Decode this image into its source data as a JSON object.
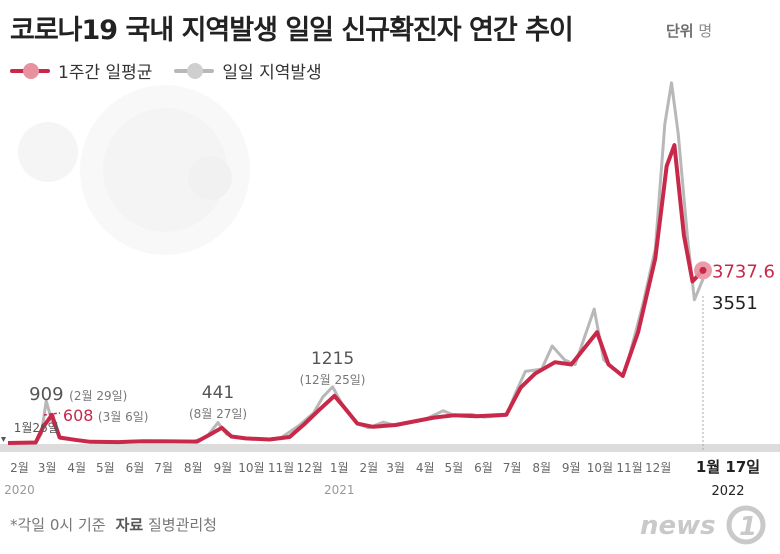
{
  "title": "코로나19 국내 지역발생 일일 신규확진자 연간 추이",
  "unit": {
    "label": "단위",
    "value": "명"
  },
  "legend": {
    "avg": "1주간 일평균",
    "daily": "일일 지역발생"
  },
  "colors": {
    "avg": "#c8294a",
    "avg_dot": "#e8929f",
    "daily": "#b8b8b8",
    "daily_dot": "#cfcfcf",
    "base": "#dcdcdc",
    "label_gray": "#555555"
  },
  "footer": {
    "note": "*각일 0시 기준",
    "source_label": "자료",
    "source": "질병관리청"
  },
  "brand": {
    "text": "news1"
  },
  "chart_data": {
    "type": "line",
    "title": "코로나19 국내 지역발생 일일 신규확진자 연간 추이",
    "xlabel": "",
    "ylabel": "",
    "x_range": [
      "2020-01-20",
      "2022-01-17"
    ],
    "ylim": [
      0,
      7600
    ],
    "grid": false,
    "legend_position": "top-left",
    "month_ticks": [
      {
        "date": "2020-02-01",
        "label": "2월"
      },
      {
        "date": "2020-03-01",
        "label": "3월"
      },
      {
        "date": "2020-04-01",
        "label": "4월"
      },
      {
        "date": "2020-05-01",
        "label": "5월"
      },
      {
        "date": "2020-06-01",
        "label": "6월"
      },
      {
        "date": "2020-07-01",
        "label": "7월"
      },
      {
        "date": "2020-08-01",
        "label": "8월"
      },
      {
        "date": "2020-09-01",
        "label": "9월"
      },
      {
        "date": "2020-10-01",
        "label": "10월"
      },
      {
        "date": "2020-11-01",
        "label": "11월"
      },
      {
        "date": "2020-12-01",
        "label": "12월"
      },
      {
        "date": "2021-01-01",
        "label": "1월"
      },
      {
        "date": "2021-02-01",
        "label": "2월"
      },
      {
        "date": "2021-03-01",
        "label": "3월"
      },
      {
        "date": "2021-04-01",
        "label": "4월"
      },
      {
        "date": "2021-05-01",
        "label": "5월"
      },
      {
        "date": "2021-06-01",
        "label": "6월"
      },
      {
        "date": "2021-07-01",
        "label": "7월"
      },
      {
        "date": "2021-08-01",
        "label": "8월"
      },
      {
        "date": "2021-09-01",
        "label": "9월"
      },
      {
        "date": "2021-10-01",
        "label": "10월"
      },
      {
        "date": "2021-11-01",
        "label": "11월"
      },
      {
        "date": "2021-12-01",
        "label": "12월"
      }
    ],
    "year_labels": [
      {
        "date": "2020-02-01",
        "label": "2020"
      },
      {
        "date": "2021-01-01",
        "label": "2021"
      },
      {
        "date": "2022-01-17",
        "label": "2022"
      }
    ],
    "end_tick": {
      "date": "2022-01-17",
      "label": "1월 17일"
    },
    "series": [
      {
        "name": "일일 지역발생",
        "points": [
          [
            "2020-01-20",
            0
          ],
          [
            "2020-02-18",
            15
          ],
          [
            "2020-02-24",
            200
          ],
          [
            "2020-02-29",
            909
          ],
          [
            "2020-03-06",
            480
          ],
          [
            "2020-03-15",
            100
          ],
          [
            "2020-03-25",
            80
          ],
          [
            "2020-04-10",
            30
          ],
          [
            "2020-05-10",
            20
          ],
          [
            "2020-06-05",
            40
          ],
          [
            "2020-07-01",
            45
          ],
          [
            "2020-08-01",
            30
          ],
          [
            "2020-08-15",
            130
          ],
          [
            "2020-08-27",
            441
          ],
          [
            "2020-09-05",
            190
          ],
          [
            "2020-09-15",
            120
          ],
          [
            "2020-10-01",
            90
          ],
          [
            "2020-10-20",
            80
          ],
          [
            "2020-11-01",
            110
          ],
          [
            "2020-11-20",
            380
          ],
          [
            "2020-12-05",
            650
          ],
          [
            "2020-12-15",
            1000
          ],
          [
            "2020-12-25",
            1215
          ],
          [
            "2021-01-05",
            800
          ],
          [
            "2021-01-20",
            420
          ],
          [
            "2021-02-01",
            330
          ],
          [
            "2021-02-16",
            450
          ],
          [
            "2021-03-01",
            380
          ],
          [
            "2021-04-01",
            510
          ],
          [
            "2021-04-20",
            700
          ],
          [
            "2021-05-01",
            600
          ],
          [
            "2021-05-20",
            620
          ],
          [
            "2021-06-01",
            560
          ],
          [
            "2021-06-25",
            600
          ],
          [
            "2021-07-05",
            1100
          ],
          [
            "2021-07-15",
            1550
          ],
          [
            "2021-08-01",
            1600
          ],
          [
            "2021-08-12",
            2100
          ],
          [
            "2021-08-25",
            1800
          ],
          [
            "2021-09-05",
            1700
          ],
          [
            "2021-09-25",
            2900
          ],
          [
            "2021-10-05",
            1800
          ],
          [
            "2021-10-25",
            1450
          ],
          [
            "2021-11-01",
            1900
          ],
          [
            "2021-11-15",
            3000
          ],
          [
            "2021-11-28",
            4200
          ],
          [
            "2021-12-08",
            6900
          ],
          [
            "2021-12-15",
            7800
          ],
          [
            "2021-12-22",
            6700
          ],
          [
            "2022-01-01",
            4400
          ],
          [
            "2022-01-08",
            3100
          ],
          [
            "2022-01-17",
            3551
          ]
        ],
        "labels": [
          {
            "date": "2020-02-29",
            "value": 909,
            "note": "(2월 29일)"
          },
          {
            "date": "2020-08-27",
            "value": 441,
            "note": "(8월 27일)"
          },
          {
            "date": "2020-12-25",
            "value": 1215,
            "note": "(12월 25일)"
          },
          {
            "date": "2022-01-17",
            "value": 3551,
            "note": ""
          }
        ]
      },
      {
        "name": "1주간 일평균",
        "points": [
          [
            "2020-01-20",
            0
          ],
          [
            "2020-02-18",
            10
          ],
          [
            "2020-02-26",
            350
          ],
          [
            "2020-03-06",
            608
          ],
          [
            "2020-03-14",
            120
          ],
          [
            "2020-03-30",
            70
          ],
          [
            "2020-04-15",
            25
          ],
          [
            "2020-05-15",
            20
          ],
          [
            "2020-06-10",
            40
          ],
          [
            "2020-07-10",
            35
          ],
          [
            "2020-08-05",
            30
          ],
          [
            "2020-08-20",
            200
          ],
          [
            "2020-08-31",
            330
          ],
          [
            "2020-09-10",
            140
          ],
          [
            "2020-09-25",
            100
          ],
          [
            "2020-10-20",
            75
          ],
          [
            "2020-11-10",
            130
          ],
          [
            "2020-11-25",
            400
          ],
          [
            "2020-12-10",
            700
          ],
          [
            "2020-12-27",
            1020
          ],
          [
            "2021-01-05",
            800
          ],
          [
            "2021-01-20",
            420
          ],
          [
            "2021-02-05",
            350
          ],
          [
            "2021-03-01",
            390
          ],
          [
            "2021-04-10",
            550
          ],
          [
            "2021-05-01",
            600
          ],
          [
            "2021-05-25",
            580
          ],
          [
            "2021-06-25",
            610
          ],
          [
            "2021-07-10",
            1200
          ],
          [
            "2021-07-25",
            1500
          ],
          [
            "2021-08-15",
            1750
          ],
          [
            "2021-09-01",
            1700
          ],
          [
            "2021-09-28",
            2400
          ],
          [
            "2021-10-10",
            1700
          ],
          [
            "2021-10-25",
            1450
          ],
          [
            "2021-11-10",
            2400
          ],
          [
            "2021-11-28",
            4000
          ],
          [
            "2021-12-10",
            6000
          ],
          [
            "2021-12-18",
            6450
          ],
          [
            "2021-12-28",
            4500
          ],
          [
            "2022-01-06",
            3500
          ],
          [
            "2022-01-17",
            3737.6
          ]
        ],
        "labels": [
          {
            "date": "2020-03-06",
            "value": 608,
            "note": "(3월 6일)"
          },
          {
            "date": "2022-01-17",
            "value": 3737.6,
            "note": ""
          }
        ]
      }
    ],
    "annotations": [
      {
        "date": "2020-01-26",
        "text": "1월26일"
      }
    ]
  }
}
